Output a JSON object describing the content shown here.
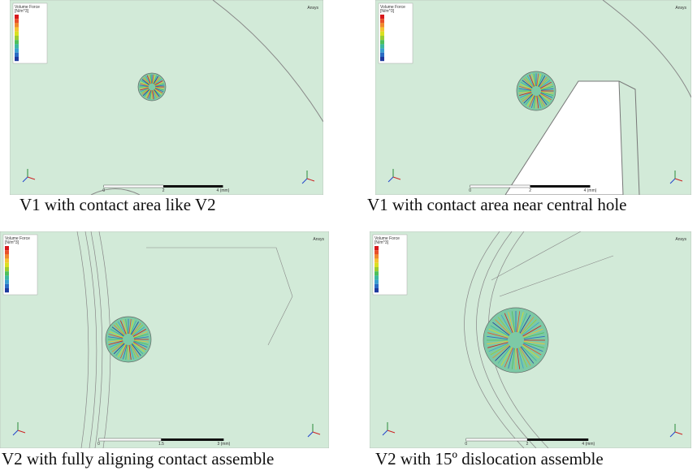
{
  "panels": [
    {
      "software": "Ansys",
      "legend_title": "Volume Force",
      "legend_unit": "[N/m^3]",
      "scale_labels": [
        "0",
        "2",
        "4 (mm)"
      ],
      "caption": "V1 with contact area like V2"
    },
    {
      "software": "Ansys",
      "legend_title": "Volume Force",
      "legend_unit": "[N/m^3]",
      "scale_labels": [
        "0",
        "2",
        "4 (mm)"
      ],
      "caption": "V1 with contact area near central hole"
    },
    {
      "software": "Ansys",
      "legend_title": "Volume Force",
      "legend_unit": "[N/m^3]",
      "scale_labels": [
        "0",
        "1.5",
        "3 (mm)"
      ],
      "caption": "V2 with fully aligning contact assemble"
    },
    {
      "software": "Ansys",
      "legend_title": "Volume Force",
      "legend_unit": "[N/m^3]",
      "scale_labels": [
        "0",
        "2",
        "4 (mm)"
      ],
      "caption": "V2 with 15º dislocation assemble"
    }
  ]
}
